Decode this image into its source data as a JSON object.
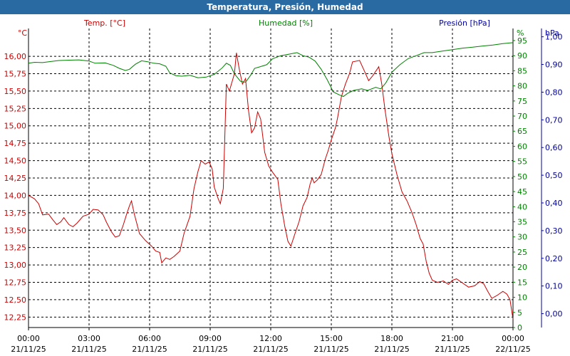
{
  "window": {
    "title": "Temperatura, Presión, Humedad"
  },
  "chart_data": {
    "type": "line",
    "title": "Temperatura, Presión, Humedad",
    "colors": {
      "temperature": "#cc0000",
      "humidity": "#008000",
      "pressure": "#000099",
      "title_bar": "#2a6aa3"
    },
    "axes": {
      "temperature": {
        "label": "Temp. [°C]",
        "unit": "°C",
        "ylim": [
          12.1,
          16.4
        ],
        "ticks": [
          "16,00",
          "15,75",
          "15,50",
          "15,25",
          "15,00",
          "14,75",
          "14,50",
          "14,25",
          "14,00",
          "13,75",
          "13,50",
          "13,25",
          "13,00",
          "12,75",
          "12,50",
          "12,25"
        ],
        "tick_values": [
          16.0,
          15.75,
          15.5,
          15.25,
          15.0,
          14.75,
          14.5,
          14.25,
          14.0,
          13.75,
          13.5,
          13.25,
          13.0,
          12.75,
          12.5,
          12.25
        ]
      },
      "humidity": {
        "label": "Humedad [%]",
        "unit": "%",
        "ylim": [
          0,
          99
        ],
        "ticks": [
          "95",
          "90",
          "85",
          "80",
          "75",
          "70",
          "65",
          "60",
          "55",
          "50",
          "45",
          "40",
          "35",
          "30",
          "25",
          "20",
          "15",
          "10",
          "5",
          "0"
        ],
        "tick_values": [
          95,
          90,
          85,
          80,
          75,
          70,
          65,
          60,
          55,
          50,
          45,
          40,
          35,
          30,
          25,
          20,
          15,
          10,
          5,
          0
        ]
      },
      "pressure": {
        "label": "Presión [hPa]",
        "unit": "hPa",
        "ylim": [
          -0.05,
          1.03
        ],
        "ticks": [
          "1,00",
          "0,90",
          "0,80",
          "0,70",
          "0,60",
          "0,50",
          "0,40",
          "0,30",
          "0,20",
          "0,10",
          "0,00"
        ],
        "tick_values": [
          1.0,
          0.9,
          0.8,
          0.7,
          0.6,
          0.5,
          0.4,
          0.3,
          0.2,
          0.1,
          0.0
        ]
      },
      "x": {
        "range_hours": [
          0,
          24
        ],
        "grid": true,
        "ticks": [
          {
            "time": "00:00",
            "date": "21/11/25",
            "hour": 0
          },
          {
            "time": "03:00",
            "date": "21/11/25",
            "hour": 3
          },
          {
            "time": "06:00",
            "date": "21/11/25",
            "hour": 6
          },
          {
            "time": "09:00",
            "date": "21/11/25",
            "hour": 9
          },
          {
            "time": "12:00",
            "date": "21/11/25",
            "hour": 12
          },
          {
            "time": "15:00",
            "date": "21/11/25",
            "hour": 15
          },
          {
            "time": "18:00",
            "date": "21/11/25",
            "hour": 18
          },
          {
            "time": "21:00",
            "date": "21/11/25",
            "hour": 21
          },
          {
            "time": "00:00",
            "date": "22/11/25",
            "hour": 24
          }
        ]
      }
    },
    "series": [
      {
        "name": "Temp. [°C]",
        "axis": "temperature",
        "color": "#cc0000",
        "points": [
          [
            0,
            14.0
          ],
          [
            0.3,
            13.95
          ],
          [
            0.5,
            13.88
          ],
          [
            0.7,
            13.72
          ],
          [
            1.0,
            13.73
          ],
          [
            1.2,
            13.65
          ],
          [
            1.4,
            13.58
          ],
          [
            1.6,
            13.62
          ],
          [
            1.75,
            13.68
          ],
          [
            2.0,
            13.58
          ],
          [
            2.2,
            13.55
          ],
          [
            2.4,
            13.6
          ],
          [
            2.7,
            13.7
          ],
          [
            3.0,
            13.73
          ],
          [
            3.2,
            13.8
          ],
          [
            3.45,
            13.79
          ],
          [
            3.7,
            13.72
          ],
          [
            3.85,
            13.62
          ],
          [
            4.1,
            13.48
          ],
          [
            4.3,
            13.4
          ],
          [
            4.5,
            13.42
          ],
          [
            4.7,
            13.58
          ],
          [
            4.85,
            13.72
          ],
          [
            5.0,
            13.85
          ],
          [
            5.1,
            13.92
          ],
          [
            5.25,
            13.72
          ],
          [
            5.5,
            13.45
          ],
          [
            5.8,
            13.35
          ],
          [
            6.1,
            13.27
          ],
          [
            6.3,
            13.2
          ],
          [
            6.5,
            13.18
          ],
          [
            6.6,
            13.03
          ],
          [
            6.8,
            13.1
          ],
          [
            7.0,
            13.08
          ],
          [
            7.2,
            13.12
          ],
          [
            7.5,
            13.2
          ],
          [
            7.7,
            13.45
          ],
          [
            8.0,
            13.7
          ],
          [
            8.2,
            14.1
          ],
          [
            8.4,
            14.35
          ],
          [
            8.55,
            14.5
          ],
          [
            8.75,
            14.45
          ],
          [
            8.95,
            14.48
          ],
          [
            9.1,
            14.38
          ],
          [
            9.2,
            14.12
          ],
          [
            9.4,
            13.95
          ],
          [
            9.5,
            13.88
          ],
          [
            9.65,
            14.1
          ],
          [
            9.8,
            15.6
          ],
          [
            9.95,
            15.5
          ],
          [
            10.2,
            15.75
          ],
          [
            10.3,
            16.05
          ],
          [
            10.45,
            15.8
          ],
          [
            10.6,
            15.6
          ],
          [
            10.75,
            15.68
          ],
          [
            10.9,
            15.22
          ],
          [
            11.05,
            14.9
          ],
          [
            11.2,
            14.97
          ],
          [
            11.35,
            15.2
          ],
          [
            11.5,
            15.1
          ],
          [
            11.7,
            14.62
          ],
          [
            11.9,
            14.42
          ],
          [
            12.1,
            14.33
          ],
          [
            12.35,
            14.23
          ],
          [
            12.5,
            13.88
          ],
          [
            12.7,
            13.55
          ],
          [
            12.85,
            13.34
          ],
          [
            13.0,
            13.27
          ],
          [
            13.2,
            13.45
          ],
          [
            13.4,
            13.62
          ],
          [
            13.6,
            13.85
          ],
          [
            13.8,
            13.97
          ],
          [
            13.95,
            14.16
          ],
          [
            14.05,
            14.25
          ],
          [
            14.15,
            14.18
          ],
          [
            14.3,
            14.22
          ],
          [
            14.5,
            14.3
          ],
          [
            14.7,
            14.52
          ],
          [
            14.85,
            14.65
          ],
          [
            15.0,
            14.8
          ],
          [
            15.2,
            14.97
          ],
          [
            15.3,
            15.1
          ],
          [
            15.5,
            15.42
          ],
          [
            15.7,
            15.6
          ],
          [
            15.9,
            15.75
          ],
          [
            16.05,
            15.92
          ],
          [
            16.4,
            15.94
          ],
          [
            16.65,
            15.78
          ],
          [
            16.85,
            15.65
          ],
          [
            17.05,
            15.72
          ],
          [
            17.35,
            15.85
          ],
          [
            17.5,
            15.6
          ],
          [
            17.65,
            15.25
          ],
          [
            17.85,
            14.85
          ],
          [
            18.0,
            14.6
          ],
          [
            18.25,
            14.3
          ],
          [
            18.5,
            14.05
          ],
          [
            18.75,
            13.92
          ],
          [
            19.0,
            13.75
          ],
          [
            19.2,
            13.58
          ],
          [
            19.4,
            13.38
          ],
          [
            19.55,
            13.3
          ],
          [
            19.7,
            13.05
          ],
          [
            19.85,
            12.88
          ],
          [
            20.0,
            12.78
          ],
          [
            20.25,
            12.75
          ],
          [
            20.55,
            12.77
          ],
          [
            20.8,
            12.72
          ],
          [
            21.0,
            12.78
          ],
          [
            21.2,
            12.8
          ],
          [
            21.5,
            12.74
          ],
          [
            21.8,
            12.68
          ],
          [
            22.1,
            12.7
          ],
          [
            22.35,
            12.76
          ],
          [
            22.55,
            12.73
          ],
          [
            22.75,
            12.62
          ],
          [
            22.95,
            12.52
          ],
          [
            23.2,
            12.56
          ],
          [
            23.5,
            12.62
          ],
          [
            23.7,
            12.58
          ],
          [
            23.85,
            12.5
          ],
          [
            24.0,
            12.22
          ]
        ]
      },
      {
        "name": "Humedad [%]",
        "axis": "humidity",
        "color": "#008000",
        "points": [
          [
            0,
            87.5
          ],
          [
            0.3,
            87.8
          ],
          [
            0.7,
            87.7
          ],
          [
            1.0,
            88.0
          ],
          [
            1.5,
            88.4
          ],
          [
            2.0,
            88.5
          ],
          [
            2.5,
            88.6
          ],
          [
            3.0,
            88.2
          ],
          [
            3.3,
            87.5
          ],
          [
            3.8,
            87.6
          ],
          [
            4.2,
            86.8
          ],
          [
            4.5,
            85.8
          ],
          [
            4.8,
            85.1
          ],
          [
            5.0,
            85.5
          ],
          [
            5.3,
            87.2
          ],
          [
            5.6,
            88.3
          ],
          [
            5.9,
            88.0
          ],
          [
            6.2,
            87.5
          ],
          [
            6.5,
            87.3
          ],
          [
            6.8,
            86.5
          ],
          [
            7.0,
            84.3
          ],
          [
            7.3,
            83.4
          ],
          [
            7.6,
            83.2
          ],
          [
            8.0,
            83.5
          ],
          [
            8.4,
            82.7
          ],
          [
            8.8,
            82.9
          ],
          [
            9.2,
            83.8
          ],
          [
            9.6,
            86.0
          ],
          [
            9.8,
            87.5
          ],
          [
            10.0,
            86.8
          ],
          [
            10.2,
            84.0
          ],
          [
            10.5,
            81.5
          ],
          [
            10.75,
            81.2
          ],
          [
            11.0,
            83.5
          ],
          [
            11.2,
            85.8
          ],
          [
            11.5,
            86.4
          ],
          [
            11.8,
            87.0
          ],
          [
            12.1,
            89.0
          ],
          [
            12.5,
            90.0
          ],
          [
            12.9,
            90.5
          ],
          [
            13.3,
            91.0
          ],
          [
            13.6,
            90.0
          ],
          [
            13.9,
            89.5
          ],
          [
            14.2,
            88.2
          ],
          [
            14.5,
            85.5
          ],
          [
            14.8,
            82.0
          ],
          [
            15.1,
            78.0
          ],
          [
            15.4,
            77.0
          ],
          [
            15.6,
            76.5
          ],
          [
            15.8,
            77.5
          ],
          [
            16.1,
            78.5
          ],
          [
            16.5,
            79.0
          ],
          [
            16.8,
            78.5
          ],
          [
            17.2,
            79.5
          ],
          [
            17.45,
            79.0
          ],
          [
            17.7,
            81.0
          ],
          [
            18.0,
            84.5
          ],
          [
            18.4,
            87.0
          ],
          [
            18.8,
            89.0
          ],
          [
            19.2,
            90.0
          ],
          [
            19.6,
            91.0
          ],
          [
            20.0,
            91.0
          ],
          [
            20.5,
            91.5
          ],
          [
            21.0,
            92.0
          ],
          [
            21.5,
            92.5
          ],
          [
            22.0,
            92.8
          ],
          [
            22.5,
            93.2
          ],
          [
            23.0,
            93.5
          ],
          [
            23.5,
            94.0
          ],
          [
            24.0,
            94.3
          ]
        ]
      }
    ]
  }
}
